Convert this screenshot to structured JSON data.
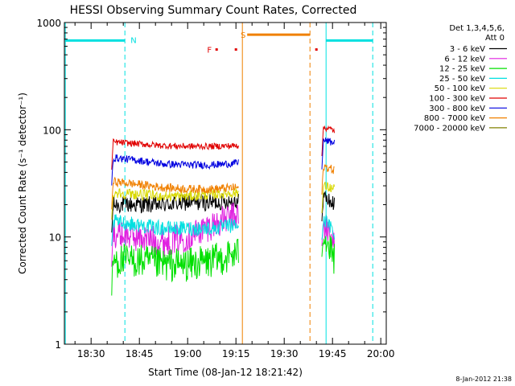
{
  "chart_data": {
    "type": "line",
    "title": "HESSI Observing Summary Count Rates, Corrected",
    "xlabel": "Start Time (08-Jan-12 18:21:42)",
    "ylabel": "Corrected Count Rate (s⁻¹ detector⁻¹)",
    "yscale": "log",
    "ylim": [
      1,
      1000
    ],
    "xlim": [
      "18:21:42",
      "20:01:42"
    ],
    "x_unit": "minutes after 18:00",
    "x_ticks": [
      30,
      45,
      60,
      75,
      90,
      105,
      120
    ],
    "x_tick_labels": [
      "18:30",
      "18:45",
      "19:00",
      "19:15",
      "19:30",
      "19:45",
      "20:00"
    ],
    "y_ticks": [
      1,
      10,
      100,
      1000
    ],
    "y_tick_labels": [
      "1",
      "10",
      "100",
      "1000"
    ],
    "legend": {
      "title_lines": [
        "Det 1,3,4,5,6,",
        "Att 0"
      ],
      "position": "right"
    },
    "series": [
      {
        "name": "3 - 6 keV",
        "color": "#000000",
        "segments": [
          {
            "start": 36.4,
            "end": 75.8,
            "values": [
              20,
              20,
              20,
              21,
              21,
              22
            ]
          },
          {
            "start": 101.7,
            "end": 105.6,
            "values": [
              25,
              22,
              20
            ]
          }
        ]
      },
      {
        "name": "6 - 12 keV",
        "color": "#e020e0",
        "segments": [
          {
            "start": 36.4,
            "end": 75.8,
            "values": [
              11,
              10,
              9,
              10,
              13,
              16
            ]
          },
          {
            "start": 101.7,
            "end": 105.6,
            "values": [
              14,
              11,
              9
            ]
          }
        ]
      },
      {
        "name": "12 - 25 keV",
        "color": "#00e000",
        "segments": [
          {
            "start": 36.4,
            "end": 75.8,
            "values": [
              6,
              6,
              5.5,
              5.5,
              6,
              7
            ]
          },
          {
            "start": 101.7,
            "end": 105.6,
            "values": [
              12,
              8,
              6
            ]
          }
        ]
      },
      {
        "name": "25 - 50 keV",
        "color": "#00e0e0",
        "segments": [
          {
            "start": 36.4,
            "end": 75.8,
            "values": [
              14,
              13,
              12,
              12,
              12,
              13
            ]
          },
          {
            "start": 101.7,
            "end": 105.6,
            "values": [
              16,
              13,
              11
            ]
          }
        ]
      },
      {
        "name": "50 - 100 keV",
        "color": "#d8d800",
        "segments": [
          {
            "start": 36.4,
            "end": 75.8,
            "values": [
              26,
              25,
              24,
              24,
              25,
              26
            ]
          },
          {
            "start": 101.7,
            "end": 105.6,
            "values": [
              30,
              29,
              28
            ]
          }
        ]
      },
      {
        "name": "100 - 300 keV",
        "color": "#e00000",
        "segments": [
          {
            "start": 36.4,
            "end": 75.8,
            "values": [
              77,
              74,
              71,
              70,
              70,
              71
            ]
          },
          {
            "start": 101.7,
            "end": 105.6,
            "values": [
              105,
              103,
              98
            ]
          }
        ]
      },
      {
        "name": "300 - 800 keV",
        "color": "#0000e0",
        "segments": [
          {
            "start": 36.4,
            "end": 75.8,
            "values": [
              55,
              52,
              48,
              47,
              47,
              49
            ]
          },
          {
            "start": 101.7,
            "end": 105.6,
            "values": [
              80,
              78,
              75
            ]
          }
        ]
      },
      {
        "name": "800 - 7000 keV",
        "color": "#f08000",
        "segments": [
          {
            "start": 36.4,
            "end": 75.8,
            "values": [
              33,
              31,
              29,
              28,
              28,
              29
            ]
          },
          {
            "start": 101.7,
            "end": 105.6,
            "values": [
              46,
              44,
              42
            ]
          }
        ]
      },
      {
        "name": "7000 - 20000 keV",
        "color": "#808000",
        "segments": []
      }
    ],
    "annotations": [
      {
        "type": "flag_bar",
        "label": "N",
        "color": "#00e0e0",
        "start": 22,
        "end": 40.5,
        "level": 680
      },
      {
        "type": "flag_bar",
        "label": "",
        "color": "#00e0e0",
        "start": 103,
        "end": 117.5,
        "level": 680
      },
      {
        "type": "flag_bar",
        "label": "S",
        "color": "#f08000",
        "start": 78.5,
        "end": 98,
        "level": 770
      },
      {
        "type": "flag_dots",
        "label": "F",
        "color": "#e00000",
        "points": [
          69,
          75,
          100
        ],
        "level": 560
      },
      {
        "type": "vline",
        "color": "#00e0e0",
        "style": "solid",
        "x": 22
      },
      {
        "type": "vline",
        "color": "#00e0e0",
        "style": "dashed",
        "x": 40.5
      },
      {
        "type": "vline",
        "color": "#00e0e0",
        "style": "solid",
        "x": 103
      },
      {
        "type": "vline",
        "color": "#00e0e0",
        "style": "dashed",
        "x": 117.5
      },
      {
        "type": "vline",
        "color": "#f08000",
        "style": "solid",
        "x": 77
      },
      {
        "type": "vline",
        "color": "#f08000",
        "style": "dashed",
        "x": 98
      }
    ],
    "footer_timestamp": "8-Jan-2012 21:38"
  }
}
